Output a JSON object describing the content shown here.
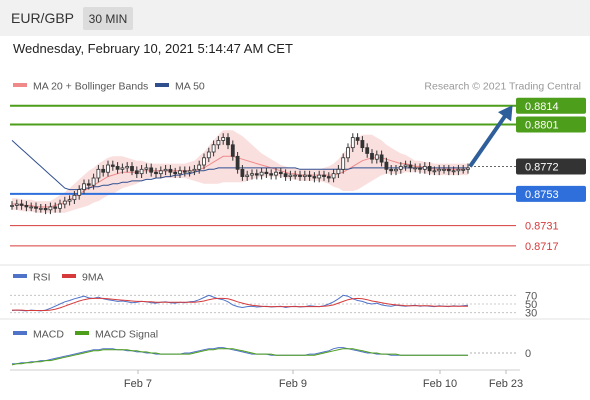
{
  "header": {
    "symbol": "EUR/GBP",
    "timeframe": "30 MIN",
    "datetime": "Wednesday, February 10, 2021 5:14:47 AM CET"
  },
  "legend": {
    "ma20_label": "MA 20 + Bollinger Bands",
    "ma50_label": "MA 50",
    "credit": "Research © 2021 Trading Central",
    "ma20_color": "#f08a8a",
    "ma50_color": "#2f4f8f"
  },
  "chart_data": [
    {
      "type": "candlestick",
      "panel": "price",
      "y_range": [
        0.871,
        0.8818
      ],
      "levels": [
        {
          "label": "0.8814",
          "value": 0.8814,
          "kind": "resistance",
          "color": "#4d9e1a"
        },
        {
          "label": "0.8801",
          "value": 0.8801,
          "kind": "resistance",
          "color": "#4d9e1a"
        },
        {
          "label": "0.8772",
          "value": 0.8772,
          "kind": "current",
          "color": "#333333"
        },
        {
          "label": "0.8753",
          "value": 0.8753,
          "kind": "pivot",
          "color": "#2f6fdc"
        },
        {
          "label": "0.8731",
          "value": 0.8731,
          "kind": "support",
          "color": "#d63a3a"
        },
        {
          "label": "0.8717",
          "value": 0.8717,
          "kind": "support",
          "color": "#d63a3a"
        }
      ],
      "close": [
        0.8745,
        0.8746,
        0.8745,
        0.8744,
        0.8744,
        0.8743,
        0.8743,
        0.8742,
        0.8744,
        0.8743,
        0.8746,
        0.8748,
        0.8749,
        0.8752,
        0.8756,
        0.876,
        0.8759,
        0.8764,
        0.877,
        0.8768,
        0.8773,
        0.8772,
        0.877,
        0.8771,
        0.8772,
        0.8769,
        0.8767,
        0.877,
        0.8771,
        0.8768,
        0.8767,
        0.8769,
        0.877,
        0.8768,
        0.8767,
        0.8769,
        0.8768,
        0.8769,
        0.877,
        0.8773,
        0.8778,
        0.8782,
        0.8787,
        0.879,
        0.8792,
        0.8787,
        0.8779,
        0.877,
        0.8765,
        0.8766,
        0.8767,
        0.8766,
        0.8768,
        0.8767,
        0.8766,
        0.8768,
        0.8767,
        0.8765,
        0.8766,
        0.8766,
        0.8765,
        0.8766,
        0.8765,
        0.8764,
        0.8766,
        0.8765,
        0.8764,
        0.8767,
        0.877,
        0.8778,
        0.8785,
        0.8792,
        0.879,
        0.8785,
        0.8781,
        0.8777,
        0.878,
        0.8775,
        0.877,
        0.8769,
        0.877,
        0.8772,
        0.8773,
        0.8771,
        0.8771,
        0.877,
        0.8772,
        0.8769,
        0.8769,
        0.877,
        0.877,
        0.8769,
        0.8769,
        0.877,
        0.877,
        0.8771
      ],
      "ma20": [
        0.8746,
        0.8746,
        0.8745,
        0.8745,
        0.8745,
        0.8744,
        0.8744,
        0.8744,
        0.8744,
        0.8745,
        0.8746,
        0.8747,
        0.8749,
        0.8751,
        0.8753,
        0.8755,
        0.8757,
        0.8759,
        0.8761,
        0.8763,
        0.8765,
        0.8766,
        0.8767,
        0.8768,
        0.8768,
        0.8768,
        0.8768,
        0.8769,
        0.8769,
        0.8769,
        0.8769,
        0.8769,
        0.8769,
        0.8769,
        0.8769,
        0.8769,
        0.8769,
        0.8769,
        0.8769,
        0.877,
        0.8771,
        0.8773,
        0.8775,
        0.8777,
        0.8779,
        0.8779,
        0.8779,
        0.8778,
        0.8777,
        0.8776,
        0.8775,
        0.8774,
        0.8773,
        0.8772,
        0.8771,
        0.877,
        0.8769,
        0.8768,
        0.8767,
        0.8767,
        0.8766,
        0.8766,
        0.8766,
        0.8766,
        0.8766,
        0.8766,
        0.8766,
        0.8766,
        0.8767,
        0.8768,
        0.877,
        0.8772,
        0.8774,
        0.8776,
        0.8777,
        0.8778,
        0.8778,
        0.8778,
        0.8777,
        0.8776,
        0.8775,
        0.8774,
        0.8774,
        0.8773,
        0.8772,
        0.8772,
        0.8771,
        0.8771,
        0.877,
        0.877,
        0.877,
        0.877,
        0.877,
        0.877,
        0.877,
        0.877
      ],
      "ma50": [
        0.879,
        0.8787,
        0.8784,
        0.8781,
        0.8778,
        0.8775,
        0.8772,
        0.8769,
        0.8766,
        0.8763,
        0.876,
        0.8757,
        0.8756,
        0.8756,
        0.8756,
        0.8757,
        0.8757,
        0.8758,
        0.8758,
        0.8759,
        0.8759,
        0.876,
        0.876,
        0.8761,
        0.8761,
        0.8762,
        0.8762,
        0.8762,
        0.8763,
        0.8763,
        0.8764,
        0.8764,
        0.8765,
        0.8765,
        0.8766,
        0.8766,
        0.8767,
        0.8767,
        0.8768,
        0.8769,
        0.8769,
        0.877,
        0.877,
        0.8771,
        0.8771,
        0.8771,
        0.8771,
        0.8771,
        0.8771,
        0.8771,
        0.8771,
        0.8771,
        0.8771,
        0.8771,
        0.8771,
        0.8771,
        0.8771,
        0.8771,
        0.8771,
        0.8771,
        0.877,
        0.877,
        0.877,
        0.877,
        0.877,
        0.877,
        0.877,
        0.877,
        0.877,
        0.877,
        0.877,
        0.8771,
        0.8771,
        0.8771,
        0.8771,
        0.8771,
        0.8771,
        0.8771,
        0.8771,
        0.8771,
        0.8771,
        0.8771,
        0.8771,
        0.8771,
        0.8771,
        0.8771,
        0.8771,
        0.8771,
        0.8771,
        0.8771,
        0.8771,
        0.8771,
        0.8771,
        0.8771,
        0.8771,
        0.8771
      ],
      "band_width": [
        0.0004,
        0.0004,
        0.0004,
        0.0004,
        0.0004,
        0.0004,
        0.0004,
        0.0004,
        0.0004,
        0.0005,
        0.0006,
        0.0007,
        0.0008,
        0.0009,
        0.001,
        0.0011,
        0.0012,
        0.0012,
        0.0013,
        0.0013,
        0.0013,
        0.0013,
        0.0012,
        0.0011,
        0.001,
        0.0009,
        0.0008,
        0.0007,
        0.0006,
        0.0005,
        0.0005,
        0.0005,
        0.0005,
        0.0005,
        0.0005,
        0.0005,
        0.0005,
        0.0006,
        0.0007,
        0.0009,
        0.0011,
        0.0013,
        0.0015,
        0.0017,
        0.0018,
        0.0018,
        0.0018,
        0.0017,
        0.0016,
        0.0014,
        0.0012,
        0.001,
        0.0008,
        0.0007,
        0.0006,
        0.0005,
        0.0004,
        0.0004,
        0.0004,
        0.0004,
        0.0004,
        0.0004,
        0.0004,
        0.0004,
        0.0004,
        0.0005,
        0.0006,
        0.0008,
        0.001,
        0.0013,
        0.0015,
        0.0017,
        0.0018,
        0.0018,
        0.0017,
        0.0016,
        0.0014,
        0.0012,
        0.001,
        0.0009,
        0.0008,
        0.0007,
        0.0006,
        0.0005,
        0.0004,
        0.0004,
        0.0004,
        0.0004,
        0.0004,
        0.0004,
        0.0004,
        0.0004,
        0.0004,
        0.0004,
        0.0004,
        0.0004
      ],
      "projection": {
        "from": 0.8772,
        "to": 0.8814
      }
    },
    {
      "type": "line",
      "panel": "rsi",
      "y_range": [
        20,
        80
      ],
      "levels": [
        {
          "label": "70",
          "value": 70
        },
        {
          "label": "50",
          "value": 50
        },
        {
          "label": "30",
          "value": 30
        }
      ],
      "series": [
        {
          "name": "RSI",
          "color": "#4e73c9",
          "values": [
            35,
            36,
            35,
            34,
            36,
            35,
            34,
            36,
            40,
            45,
            50,
            55,
            58,
            62,
            65,
            68,
            64,
            63,
            66,
            62,
            60,
            58,
            56,
            57,
            55,
            53,
            54,
            56,
            55,
            53,
            52,
            54,
            55,
            53,
            52,
            54,
            53,
            55,
            56,
            60,
            65,
            70,
            66,
            62,
            60,
            55,
            48,
            44,
            42,
            44,
            45,
            43,
            44,
            45,
            43,
            44,
            45,
            42,
            44,
            45,
            43,
            44,
            46,
            45,
            44,
            46,
            50,
            55,
            62,
            70,
            68,
            62,
            58,
            56,
            52,
            50,
            52,
            48,
            46,
            45,
            47,
            46,
            45,
            46,
            47,
            45,
            46,
            45,
            44,
            46,
            45,
            44,
            46,
            45,
            46,
            47
          ]
        },
        {
          "name": "9MA",
          "color": "#d63a3a",
          "values": [
            36,
            36,
            36,
            35,
            35,
            35,
            35,
            35,
            36,
            38,
            41,
            45,
            49,
            53,
            57,
            60,
            62,
            63,
            63,
            63,
            62,
            61,
            60,
            59,
            58,
            57,
            56,
            56,
            55,
            55,
            54,
            54,
            54,
            54,
            54,
            54,
            54,
            54,
            54,
            55,
            57,
            60,
            62,
            63,
            63,
            62,
            59,
            55,
            52,
            49,
            47,
            46,
            45,
            44,
            44,
            44,
            44,
            44,
            44,
            44,
            44,
            44,
            44,
            44,
            44,
            45,
            46,
            48,
            52,
            56,
            60,
            62,
            63,
            62,
            60,
            57,
            55,
            53,
            51,
            49,
            48,
            47,
            46,
            46,
            46,
            46,
            46,
            46,
            45,
            45,
            45,
            45,
            45,
            45,
            45,
            45
          ]
        }
      ]
    },
    {
      "type": "line",
      "panel": "macd",
      "y_range": [
        -0.0012,
        0.0012
      ],
      "levels": [
        {
          "label": "0",
          "value": 0
        }
      ],
      "series": [
        {
          "name": "MACD",
          "color": "#4e73c9",
          "values": [
            -0.001,
            -0.001,
            -0.0009,
            -0.0009,
            -0.0008,
            -0.0008,
            -0.0007,
            -0.0007,
            -0.0006,
            -0.0005,
            -0.0004,
            -0.0003,
            -0.0002,
            -0.0001,
            0.0,
            0.0001,
            0.0002,
            0.0003,
            0.0003,
            0.0004,
            0.0004,
            0.0004,
            0.0003,
            0.0003,
            0.0002,
            0.0002,
            0.0001,
            0.0001,
            0.0,
            0.0,
            -0.0001,
            -0.0001,
            -0.0001,
            -0.0001,
            -0.0001,
            -0.0001,
            0.0,
            0.0,
            0.0001,
            0.0002,
            0.0003,
            0.0004,
            0.0004,
            0.0005,
            0.0005,
            0.0004,
            0.0003,
            0.0002,
            0.0001,
            0.0,
            -0.0001,
            -0.0001,
            -0.0001,
            -0.0001,
            -0.0002,
            -0.0002,
            -0.0002,
            -0.0002,
            -0.0002,
            -0.0002,
            -0.0002,
            -0.0002,
            -0.0001,
            -0.0001,
            0.0,
            0.0001,
            0.0002,
            0.0004,
            0.0005,
            0.0005,
            0.0004,
            0.0003,
            0.0002,
            0.0001,
            0.0,
            0.0,
            -0.0001,
            -0.0001,
            -0.0001,
            -0.0002,
            -0.0002,
            -0.0002,
            -0.0002,
            -0.0002,
            -0.0002,
            -0.0002,
            -0.0002,
            -0.0002,
            -0.0002,
            -0.0002,
            -0.0002,
            -0.0002,
            -0.0002,
            -0.0002,
            -0.0002,
            -0.0002
          ]
        },
        {
          "name": "MACD Signal",
          "color": "#4d9e1a",
          "values": [
            -0.0011,
            -0.001,
            -0.001,
            -0.0009,
            -0.0009,
            -0.0008,
            -0.0008,
            -0.0007,
            -0.0007,
            -0.0006,
            -0.0005,
            -0.0004,
            -0.0003,
            -0.0002,
            -0.0001,
            0.0,
            0.0001,
            0.0002,
            0.0002,
            0.0003,
            0.0003,
            0.0003,
            0.0003,
            0.0003,
            0.0003,
            0.0002,
            0.0002,
            0.0001,
            0.0001,
            0.0,
            0.0,
            -0.0001,
            -0.0001,
            -0.0001,
            -0.0001,
            -0.0001,
            -0.0001,
            -0.0001,
            0.0,
            0.0001,
            0.0002,
            0.0003,
            0.0003,
            0.0004,
            0.0004,
            0.0004,
            0.0004,
            0.0003,
            0.0002,
            0.0001,
            0.0,
            -0.0001,
            -0.0001,
            -0.0001,
            -0.0001,
            -0.0002,
            -0.0002,
            -0.0002,
            -0.0002,
            -0.0002,
            -0.0002,
            -0.0002,
            -0.0002,
            -0.0002,
            -0.0001,
            0.0,
            0.0001,
            0.0002,
            0.0003,
            0.0004,
            0.0004,
            0.0004,
            0.0003,
            0.0002,
            0.0001,
            0.0,
            0.0,
            -0.0001,
            -0.0001,
            -0.0001,
            -0.0001,
            -0.0002,
            -0.0002,
            -0.0002,
            -0.0002,
            -0.0002,
            -0.0002,
            -0.0002,
            -0.0002,
            -0.0002,
            -0.0002,
            -0.0002,
            -0.0002,
            -0.0002,
            -0.0002,
            -0.0002
          ]
        }
      ]
    }
  ],
  "rsi_legend": {
    "rsi": "RSI",
    "ma": "9MA"
  },
  "macd_legend": {
    "macd": "MACD",
    "signal": "MACD Signal"
  },
  "x_axis": {
    "labels": [
      "Feb 7",
      "Feb 9",
      "Feb 10",
      "Feb 23"
    ]
  }
}
